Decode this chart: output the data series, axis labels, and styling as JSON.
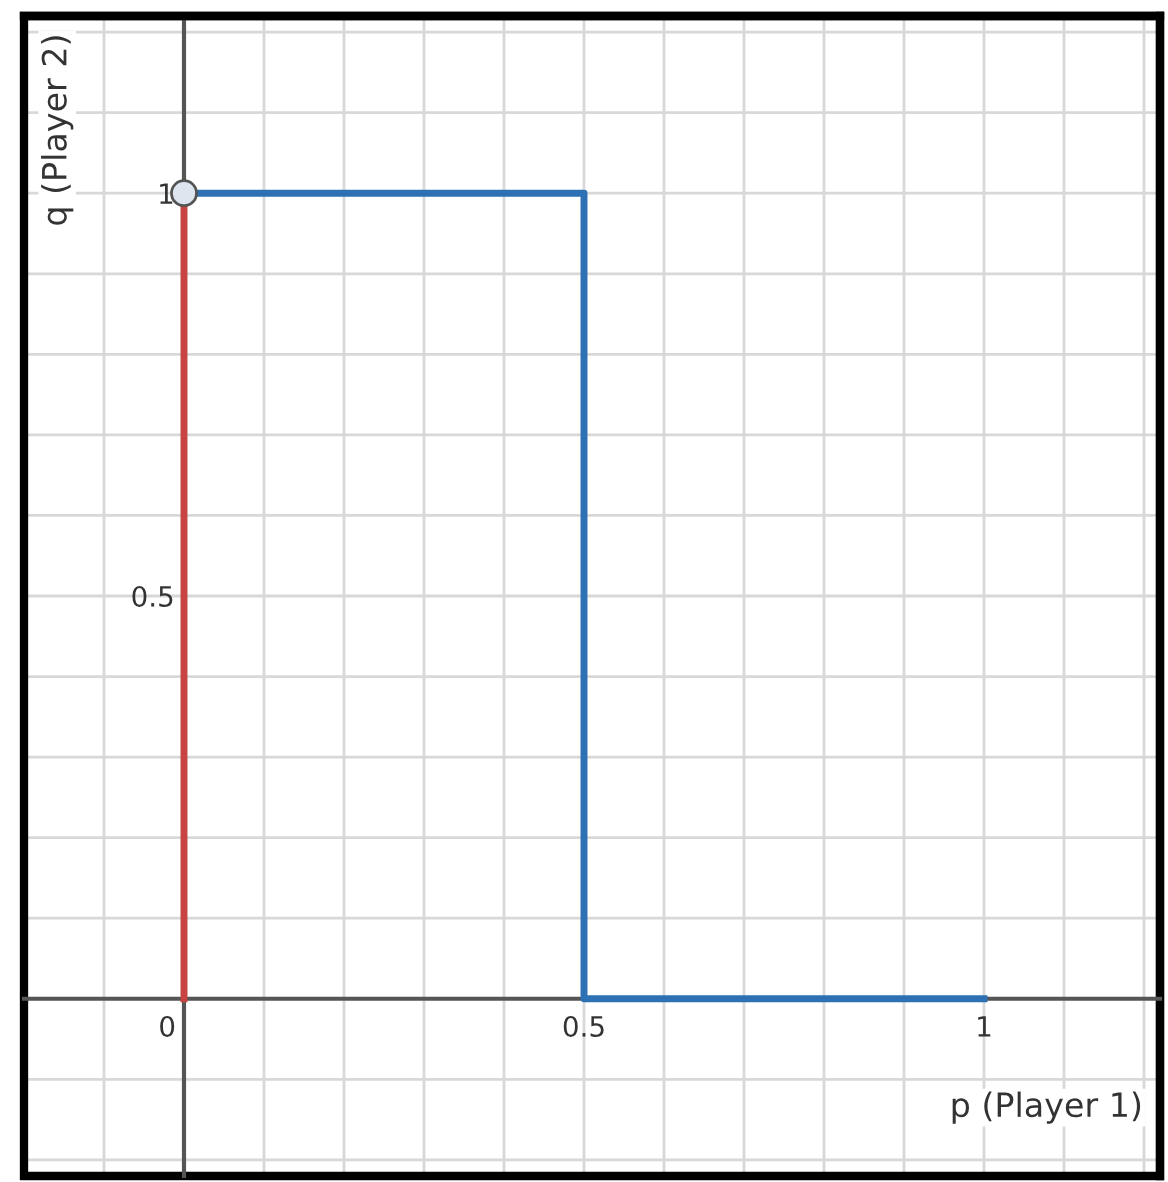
{
  "chart_data": {
    "type": "line",
    "xlabel": "p (Player 1)",
    "ylabel": "q (Player 2)",
    "xlim": [
      -0.2,
      1.22
    ],
    "ylim": [
      -0.22,
      1.22
    ],
    "xticks": [
      {
        "value": -0.1,
        "label": null
      },
      0,
      {
        "value": 0.1,
        "label": null
      },
      {
        "value": 0.2,
        "label": null
      },
      {
        "value": 0.3,
        "label": null
      },
      {
        "value": 0.4,
        "label": null
      },
      0.5,
      {
        "value": 0.6,
        "label": null
      },
      {
        "value": 0.7,
        "label": null
      },
      {
        "value": 0.8,
        "label": null
      },
      {
        "value": 0.9,
        "label": null
      },
      1,
      {
        "value": 1.1,
        "label": null
      },
      {
        "value": 1.2,
        "label": null
      }
    ],
    "yticks": [
      {
        "value": -0.2,
        "label": null
      },
      {
        "value": -0.1,
        "label": null
      },
      {
        "value": 0.1,
        "label": null
      },
      {
        "value": 0.2,
        "label": null
      },
      {
        "value": 0.3,
        "label": null
      },
      {
        "value": 0.4,
        "label": null
      },
      0.5,
      {
        "value": 0.6,
        "label": null
      },
      {
        "value": 0.7,
        "label": null
      },
      {
        "value": 0.8,
        "label": null
      },
      {
        "value": 0.9,
        "label": null
      },
      1,
      {
        "value": 1.1,
        "label": null
      },
      {
        "value": 1.2,
        "label": null
      }
    ],
    "grid": true,
    "legend": false,
    "series": [
      {
        "type": "line",
        "color": "#c74440",
        "x": [
          0,
          0
        ],
        "values": [
          0,
          1
        ]
      },
      {
        "type": "line",
        "color": "#2d70b3",
        "x": [
          0,
          0.5,
          0.5,
          1
        ],
        "values": [
          1,
          1,
          0,
          0
        ]
      },
      {
        "type": "scatter",
        "color": "#dde6ee",
        "marker": "circle",
        "x": [
          0
        ],
        "values": [
          1
        ]
      }
    ]
  }
}
